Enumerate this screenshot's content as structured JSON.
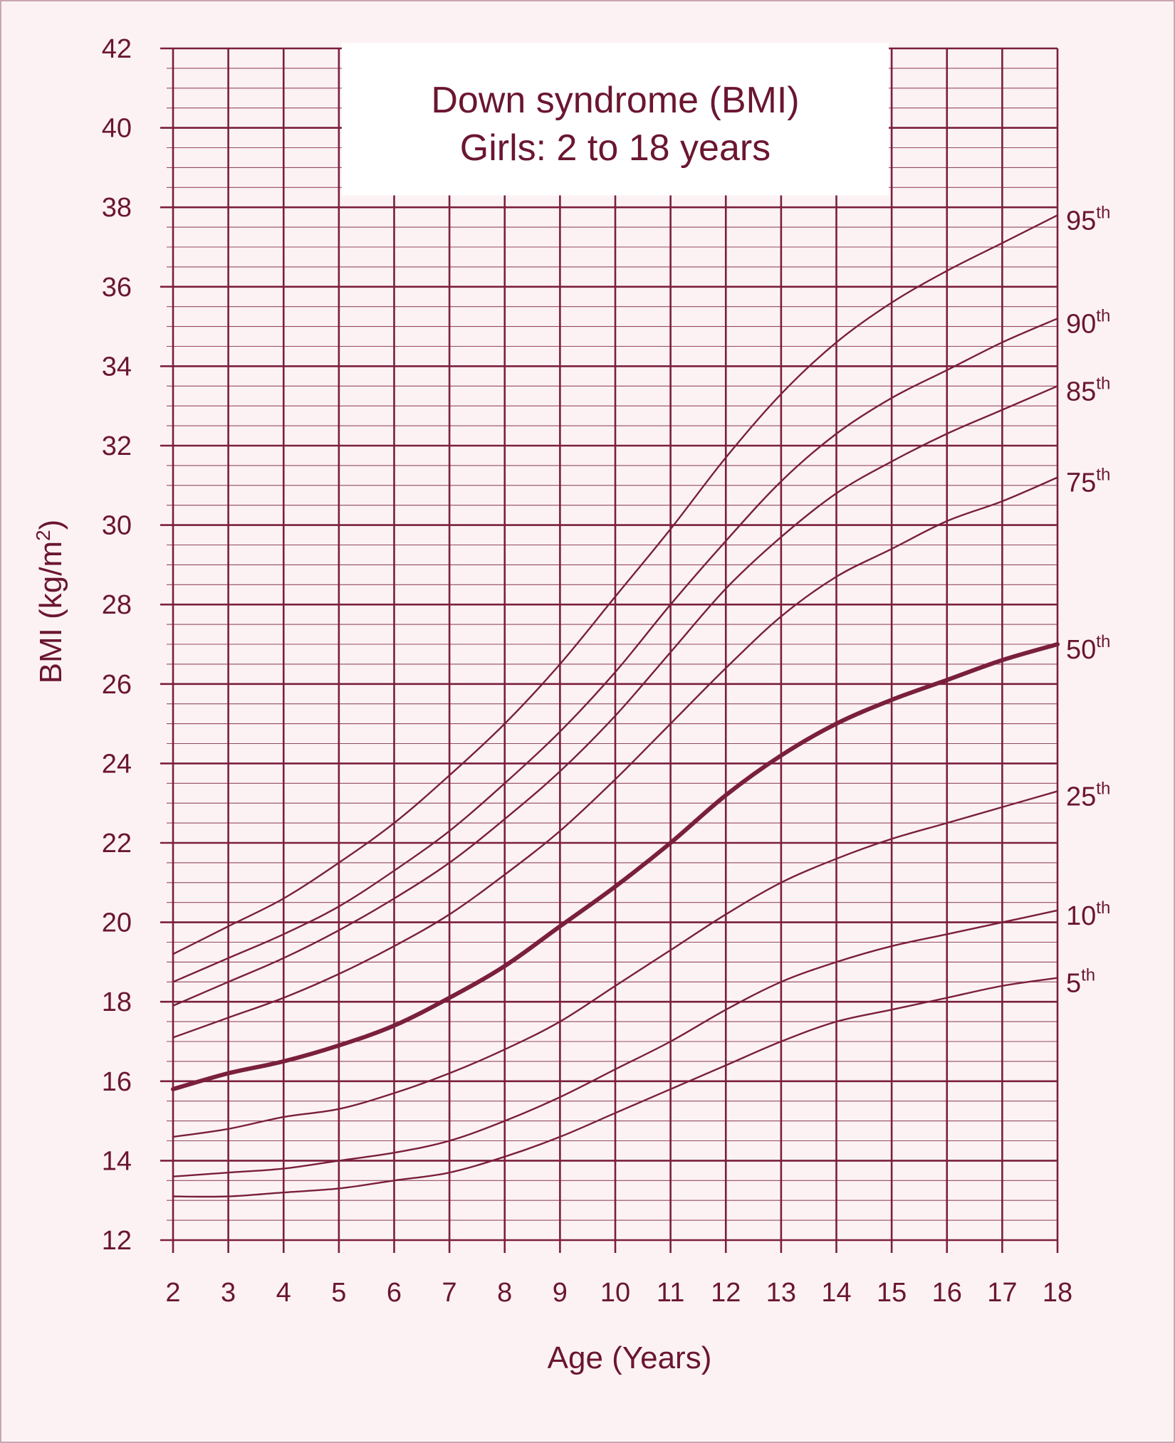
{
  "chart_data": {
    "type": "line",
    "title": "Down syndrome (BMI)",
    "subtitle": "Girls: 2 to 18 years",
    "xlabel": "Age (Years)",
    "ylabel": "BMI (kg/m",
    "ylabel_sup": "2",
    "ylabel_end": ")",
    "xlim": [
      2,
      18
    ],
    "ylim": [
      12,
      42
    ],
    "x_ticks": [
      2,
      3,
      4,
      5,
      6,
      7,
      8,
      9,
      10,
      11,
      12,
      13,
      14,
      15,
      16,
      17,
      18
    ],
    "y_ticks": [
      12,
      14,
      16,
      18,
      20,
      22,
      24,
      26,
      28,
      30,
      32,
      34,
      36,
      38,
      40,
      42
    ],
    "grid": true,
    "line_color": "#7a1f3d",
    "x": [
      2,
      3,
      4,
      5,
      6,
      7,
      8,
      9,
      10,
      11,
      12,
      13,
      14,
      15,
      16,
      17,
      18
    ],
    "series": [
      {
        "name": "95",
        "suffix": "th",
        "bold": false,
        "values": [
          19.2,
          19.9,
          20.6,
          21.5,
          22.5,
          23.7,
          25.0,
          26.5,
          28.2,
          29.9,
          31.7,
          33.3,
          34.6,
          35.6,
          36.4,
          37.1,
          37.8
        ]
      },
      {
        "name": "90",
        "suffix": "th",
        "bold": false,
        "values": [
          18.5,
          19.1,
          19.7,
          20.4,
          21.3,
          22.3,
          23.5,
          24.8,
          26.3,
          28.0,
          29.6,
          31.1,
          32.3,
          33.2,
          33.9,
          34.6,
          35.2
        ]
      },
      {
        "name": "85",
        "suffix": "th",
        "bold": false,
        "values": [
          17.9,
          18.5,
          19.1,
          19.8,
          20.6,
          21.5,
          22.6,
          23.8,
          25.2,
          26.8,
          28.4,
          29.7,
          30.8,
          31.6,
          32.3,
          32.9,
          33.5
        ]
      },
      {
        "name": "75",
        "suffix": "th",
        "bold": false,
        "values": [
          17.1,
          17.6,
          18.1,
          18.7,
          19.4,
          20.2,
          21.2,
          22.3,
          23.6,
          25.0,
          26.4,
          27.7,
          28.7,
          29.4,
          30.1,
          30.6,
          31.2
        ]
      },
      {
        "name": "50",
        "suffix": "th",
        "bold": true,
        "values": [
          15.8,
          16.2,
          16.5,
          16.9,
          17.4,
          18.1,
          18.9,
          19.9,
          20.9,
          22.0,
          23.2,
          24.2,
          25.0,
          25.6,
          26.1,
          26.6,
          27.0
        ]
      },
      {
        "name": "25",
        "suffix": "th",
        "bold": false,
        "values": [
          14.6,
          14.8,
          15.1,
          15.3,
          15.7,
          16.2,
          16.8,
          17.5,
          18.4,
          19.3,
          20.2,
          21.0,
          21.6,
          22.1,
          22.5,
          22.9,
          23.3
        ]
      },
      {
        "name": "10",
        "suffix": "th",
        "bold": false,
        "values": [
          13.6,
          13.7,
          13.8,
          14.0,
          14.2,
          14.5,
          15.0,
          15.6,
          16.3,
          17.0,
          17.8,
          18.5,
          19.0,
          19.4,
          19.7,
          20.0,
          20.3
        ]
      },
      {
        "name": "5",
        "suffix": "th",
        "bold": false,
        "values": [
          13.1,
          13.1,
          13.2,
          13.3,
          13.5,
          13.7,
          14.1,
          14.6,
          15.2,
          15.8,
          16.4,
          17.0,
          17.5,
          17.8,
          18.1,
          18.4,
          18.6
        ]
      }
    ]
  }
}
